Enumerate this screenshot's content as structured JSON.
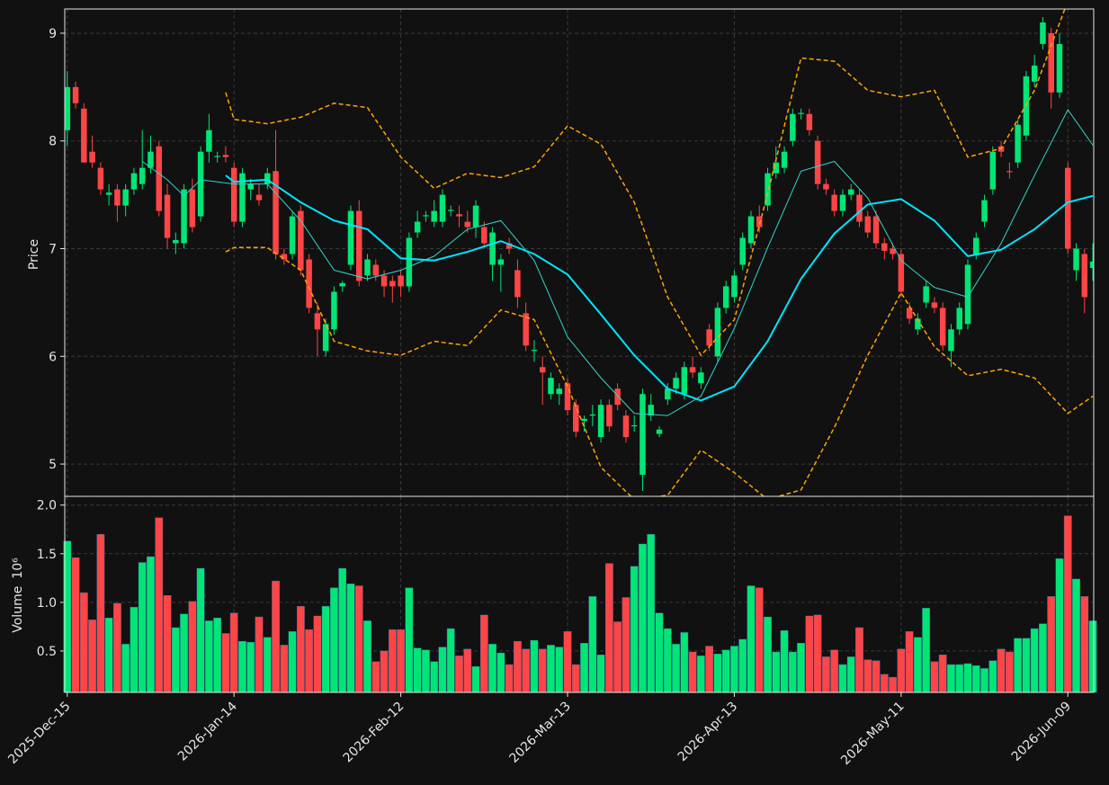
{
  "chart_data": [
    {
      "type": "candlestick",
      "ylabel": "Price",
      "ylim": [
        4.7,
        9.225
      ],
      "yticks": [
        5,
        6,
        7,
        8,
        9
      ],
      "grid": true,
      "up_color": "#00e676",
      "down_color": "#ff4545",
      "open": [
        8.1,
        8.5,
        8.3,
        7.9,
        7.75,
        7.5,
        7.55,
        7.4,
        7.55,
        7.6,
        7.75,
        7.95,
        7.5,
        7.05,
        7.05,
        7.55,
        7.3,
        7.9,
        7.85,
        7.87,
        7.75,
        7.25,
        7.55,
        7.5,
        7.6,
        7.72,
        6.95,
        6.95,
        7.35,
        6.9,
        6.4,
        6.05,
        6.25,
        6.65,
        6.85,
        7.35,
        6.75,
        6.85,
        6.75,
        6.7,
        6.75,
        6.65,
        7.15,
        7.3,
        7.25,
        7.25,
        7.35,
        7.32,
        7.25,
        7.2,
        7.2,
        6.85,
        6.85,
        7.05,
        6.8,
        6.4,
        6.05,
        5.9,
        5.65,
        5.65,
        5.75,
        5.55,
        5.4,
        5.45,
        5.25,
        5.55,
        5.7,
        5.45,
        5.35,
        4.9,
        5.45,
        5.28,
        5.6,
        5.7,
        5.65,
        5.9,
        5.75,
        6.25,
        6.0,
        6.45,
        6.55,
        6.85,
        7.05,
        7.3,
        7.4,
        7.7,
        7.75,
        8.0,
        8.25,
        8.25,
        8.0,
        7.6,
        7.5,
        7.35,
        7.5,
        7.5,
        7.3,
        7.3,
        7.05,
        7.0,
        6.95,
        6.45,
        6.25,
        6.5,
        6.5,
        6.45,
        6.05,
        6.25,
        6.3,
        6.95,
        7.25,
        7.55,
        7.95,
        7.72,
        7.8,
        8.05,
        8.55,
        8.9,
        9.0,
        8.45,
        7.75,
        6.8,
        6.95,
        6.82
      ],
      "high": [
        8.65,
        8.55,
        8.35,
        8.05,
        7.8,
        7.6,
        7.6,
        7.6,
        7.75,
        8.1,
        8.05,
        8.0,
        7.6,
        7.15,
        7.6,
        7.65,
        7.95,
        8.25,
        7.9,
        7.95,
        7.8,
        7.75,
        7.65,
        7.6,
        7.75,
        8.1,
        7.0,
        7.35,
        7.4,
        6.95,
        6.5,
        6.35,
        6.65,
        6.7,
        7.4,
        7.45,
        6.95,
        6.9,
        6.8,
        6.75,
        6.8,
        7.15,
        7.35,
        7.35,
        7.45,
        7.55,
        7.4,
        7.4,
        7.35,
        7.45,
        7.25,
        7.2,
        6.95,
        7.1,
        6.9,
        6.5,
        6.15,
        6.0,
        5.85,
        5.75,
        5.8,
        5.6,
        5.45,
        5.55,
        5.6,
        5.6,
        5.75,
        5.5,
        5.45,
        5.7,
        5.65,
        5.35,
        5.75,
        5.85,
        5.95,
        6.0,
        5.9,
        6.3,
        6.5,
        6.7,
        6.8,
        7.15,
        7.35,
        7.4,
        7.75,
        7.95,
        7.95,
        8.3,
        8.3,
        8.3,
        8.05,
        7.65,
        7.55,
        7.55,
        7.6,
        7.55,
        7.35,
        7.35,
        7.1,
        7.05,
        7.0,
        6.5,
        6.4,
        6.7,
        6.55,
        6.5,
        6.3,
        6.5,
        6.9,
        7.15,
        7.5,
        7.95,
        8.0,
        7.8,
        8.2,
        8.65,
        8.8,
        9.15,
        9.05,
        9.0,
        7.8,
        7.05,
        7.0,
        7.05
      ],
      "low": [
        7.95,
        8.3,
        7.8,
        7.75,
        7.5,
        7.4,
        7.25,
        7.3,
        7.5,
        7.55,
        7.7,
        7.3,
        7.0,
        6.95,
        7.0,
        7.15,
        7.25,
        7.8,
        7.8,
        7.8,
        7.2,
        7.2,
        7.45,
        7.4,
        7.55,
        6.9,
        6.85,
        6.9,
        6.75,
        6.4,
        6.0,
        6.0,
        6.2,
        6.6,
        6.8,
        6.65,
        6.7,
        6.7,
        6.55,
        6.5,
        6.55,
        6.6,
        7.1,
        7.25,
        7.2,
        7.2,
        7.3,
        7.2,
        7.15,
        7.1,
        7.0,
        6.7,
        6.6,
        6.95,
        6.45,
        6.05,
        5.95,
        5.55,
        5.6,
        5.55,
        5.45,
        5.25,
        5.3,
        5.35,
        5.2,
        5.3,
        5.5,
        5.2,
        5.3,
        4.75,
        5.4,
        5.25,
        5.55,
        5.65,
        5.6,
        5.8,
        5.7,
        6.05,
        5.95,
        6.4,
        6.5,
        6.8,
        7.0,
        7.15,
        7.35,
        7.65,
        7.7,
        7.95,
        8.2,
        8.05,
        7.55,
        7.5,
        7.3,
        7.3,
        7.45,
        7.2,
        7.1,
        7.0,
        6.9,
        6.9,
        6.55,
        6.3,
        6.2,
        6.45,
        6.4,
        6.05,
        5.9,
        6.2,
        6.25,
        6.9,
        7.2,
        7.5,
        7.85,
        7.65,
        7.75,
        8.0,
        8.5,
        8.85,
        8.3,
        8.4,
        6.95,
        6.7,
        6.4,
        6.7
      ],
      "close": [
        8.5,
        8.35,
        7.8,
        7.8,
        7.55,
        7.52,
        7.4,
        7.55,
        7.7,
        7.75,
        7.9,
        7.35,
        7.1,
        7.08,
        7.55,
        7.2,
        7.9,
        8.1,
        7.86,
        7.85,
        7.25,
        7.7,
        7.6,
        7.45,
        7.7,
        6.95,
        6.9,
        7.3,
        6.8,
        6.45,
        6.25,
        6.3,
        6.6,
        6.68,
        7.35,
        6.7,
        6.9,
        6.75,
        6.65,
        6.65,
        6.65,
        7.1,
        7.25,
        7.31,
        7.35,
        7.5,
        7.36,
        7.3,
        7.2,
        7.4,
        7.05,
        7.15,
        6.9,
        7.0,
        6.55,
        6.1,
        6.06,
        5.85,
        5.8,
        5.7,
        5.5,
        5.3,
        5.42,
        5.46,
        5.55,
        5.35,
        5.55,
        5.25,
        5.36,
        5.65,
        5.55,
        5.32,
        5.7,
        5.8,
        5.9,
        5.85,
        5.85,
        6.1,
        6.45,
        6.65,
        6.75,
        7.1,
        7.3,
        7.2,
        7.7,
        7.8,
        7.9,
        8.25,
        8.26,
        8.1,
        7.6,
        7.55,
        7.35,
        7.5,
        7.55,
        7.25,
        7.15,
        7.05,
        6.98,
        6.95,
        6.6,
        6.35,
        6.35,
        6.65,
        6.45,
        6.1,
        6.25,
        6.45,
        6.85,
        7.1,
        7.45,
        7.9,
        7.9,
        7.71,
        8.15,
        8.6,
        8.7,
        9.1,
        8.45,
        8.9,
        7.0,
        7.0,
        6.55,
        6.88
      ],
      "overlays": [
        {
          "color": "#ffa500",
          "style": "dashed",
          "x": [
            19,
            20,
            24,
            28,
            32,
            36,
            40,
            44,
            48,
            52,
            56,
            60,
            64,
            68,
            72,
            76,
            80,
            84,
            88,
            92,
            96,
            100,
            104,
            108,
            112,
            116,
            120,
            123
          ],
          "values": [
            8.45,
            8.2,
            8.16,
            8.22,
            8.35,
            8.31,
            7.85,
            7.56,
            7.7,
            7.66,
            7.76,
            8.14,
            7.97,
            7.43,
            6.55,
            6.01,
            6.34,
            7.51,
            8.77,
            8.74,
            8.47,
            8.41,
            8.47,
            7.85,
            7.93,
            8.47,
            9.3,
            9.4
          ]
        },
        {
          "color": "#ffa500",
          "style": "dashed",
          "x": [
            19,
            20,
            24,
            28,
            32,
            36,
            40,
            44,
            48,
            52,
            56,
            60,
            64,
            68,
            72,
            76,
            80,
            84,
            88,
            92,
            96,
            100,
            104,
            108,
            112,
            116,
            120,
            123
          ],
          "values": [
            6.97,
            7.01,
            7.01,
            6.8,
            6.14,
            6.05,
            6.01,
            6.14,
            6.1,
            6.43,
            6.34,
            5.72,
            4.97,
            4.67,
            4.71,
            5.13,
            4.92,
            4.67,
            4.76,
            5.34,
            6.01,
            6.59,
            6.09,
            5.82,
            5.88,
            5.8,
            5.47,
            5.63
          ]
        },
        {
          "color": "#00e5ff",
          "style": "solid",
          "width": 2,
          "x": [
            19,
            20,
            24,
            28,
            32,
            36,
            40,
            44,
            48,
            52,
            56,
            60,
            64,
            68,
            72,
            76,
            80,
            84,
            88,
            92,
            96,
            100,
            104,
            108,
            112,
            116,
            120,
            123
          ],
          "values": [
            7.68,
            7.62,
            7.64,
            7.43,
            7.26,
            7.18,
            6.91,
            6.89,
            6.97,
            7.07,
            6.95,
            6.76,
            6.39,
            6.01,
            5.7,
            5.59,
            5.72,
            6.14,
            6.72,
            7.14,
            7.41,
            7.46,
            7.26,
            6.93,
            6.99,
            7.18,
            7.43,
            7.49
          ]
        },
        {
          "color": "#30d5c8",
          "style": "solid",
          "width": 1,
          "x": [
            9,
            12,
            14,
            16,
            20,
            24,
            28,
            32,
            36,
            40,
            44,
            48,
            52,
            56,
            60,
            64,
            68,
            72,
            76,
            80,
            84,
            88,
            92,
            96,
            100,
            104,
            108,
            112,
            116,
            120,
            123
          ],
          "values": [
            7.81,
            7.64,
            7.49,
            7.64,
            7.6,
            7.6,
            7.26,
            6.8,
            6.72,
            6.8,
            6.93,
            7.18,
            7.26,
            6.89,
            6.18,
            5.8,
            5.47,
            5.45,
            5.63,
            6.26,
            7.01,
            7.72,
            7.81,
            7.47,
            6.89,
            6.64,
            6.55,
            7.05,
            7.68,
            8.29,
            7.96
          ]
        }
      ]
    },
    {
      "type": "bar",
      "ylabel": "Volume",
      "yunit": "10⁶",
      "ylim": [
        0.074,
        2.09
      ],
      "yticks": [
        0.5,
        {
          "value": 1,
          "label": "1.0"
        },
        1.5,
        {
          "value": 2,
          "label": "2.0"
        }
      ],
      "grid": true,
      "categories": [
        "2025-Dec-15",
        null,
        null,
        null,
        null,
        null,
        null,
        null,
        null,
        null,
        null,
        null,
        null,
        null,
        null,
        null,
        null,
        null,
        null,
        null,
        "2026-Jan-14",
        null,
        null,
        null,
        null,
        null,
        null,
        null,
        null,
        null,
        null,
        null,
        null,
        null,
        null,
        null,
        null,
        null,
        null,
        null,
        "2026-Feb-12",
        null,
        null,
        null,
        null,
        null,
        null,
        null,
        null,
        null,
        null,
        null,
        null,
        null,
        null,
        null,
        null,
        null,
        null,
        null,
        "2026-Mar-13",
        null,
        null,
        null,
        null,
        null,
        null,
        null,
        null,
        null,
        null,
        null,
        null,
        null,
        null,
        null,
        null,
        null,
        null,
        null,
        "2026-Apr-13",
        null,
        null,
        null,
        null,
        null,
        null,
        null,
        null,
        null,
        null,
        null,
        null,
        null,
        null,
        null,
        null,
        null,
        null,
        null,
        "2026-May-11",
        null,
        null,
        null,
        null,
        null,
        null,
        null,
        null,
        null,
        null,
        null,
        null,
        null,
        null,
        null,
        null,
        null,
        null,
        null,
        "2026-Jun-09",
        null,
        null,
        null
      ],
      "values": [
        1.63,
        1.46,
        1.1,
        0.82,
        1.7,
        0.84,
        0.99,
        0.57,
        0.95,
        1.41,
        1.47,
        1.87,
        1.07,
        0.74,
        0.88,
        1.01,
        1.35,
        0.81,
        0.84,
        0.68,
        0.89,
        0.6,
        0.59,
        0.85,
        0.64,
        1.22,
        0.56,
        0.7,
        0.96,
        0.72,
        0.86,
        0.96,
        1.15,
        1.35,
        1.19,
        1.17,
        0.81,
        0.39,
        0.5,
        0.72,
        0.72,
        1.15,
        0.53,
        0.51,
        0.39,
        0.54,
        0.73,
        0.45,
        0.52,
        0.34,
        0.87,
        0.57,
        0.48,
        0.36,
        0.6,
        0.52,
        0.61,
        0.52,
        0.56,
        0.54,
        0.7,
        0.36,
        0.58,
        1.06,
        0.46,
        1.4,
        0.8,
        1.05,
        1.37,
        1.6,
        1.7,
        0.89,
        0.73,
        0.57,
        0.69,
        0.49,
        0.45,
        0.55,
        0.47,
        0.51,
        0.55,
        0.62,
        1.17,
        1.15,
        0.85,
        0.49,
        0.71,
        0.49,
        0.58,
        0.86,
        0.87,
        0.44,
        0.51,
        0.36,
        0.44,
        0.74,
        0.41,
        0.4,
        0.26,
        0.23,
        0.52,
        0.7,
        0.64,
        0.94,
        0.39,
        0.46,
        0.36,
        0.36,
        0.37,
        0.35,
        0.32,
        0.4,
        0.52,
        0.49,
        0.63,
        0.63,
        0.73,
        0.78,
        1.06,
        1.45,
        1.89,
        1.24,
        1.06,
        0.81
      ]
    }
  ]
}
